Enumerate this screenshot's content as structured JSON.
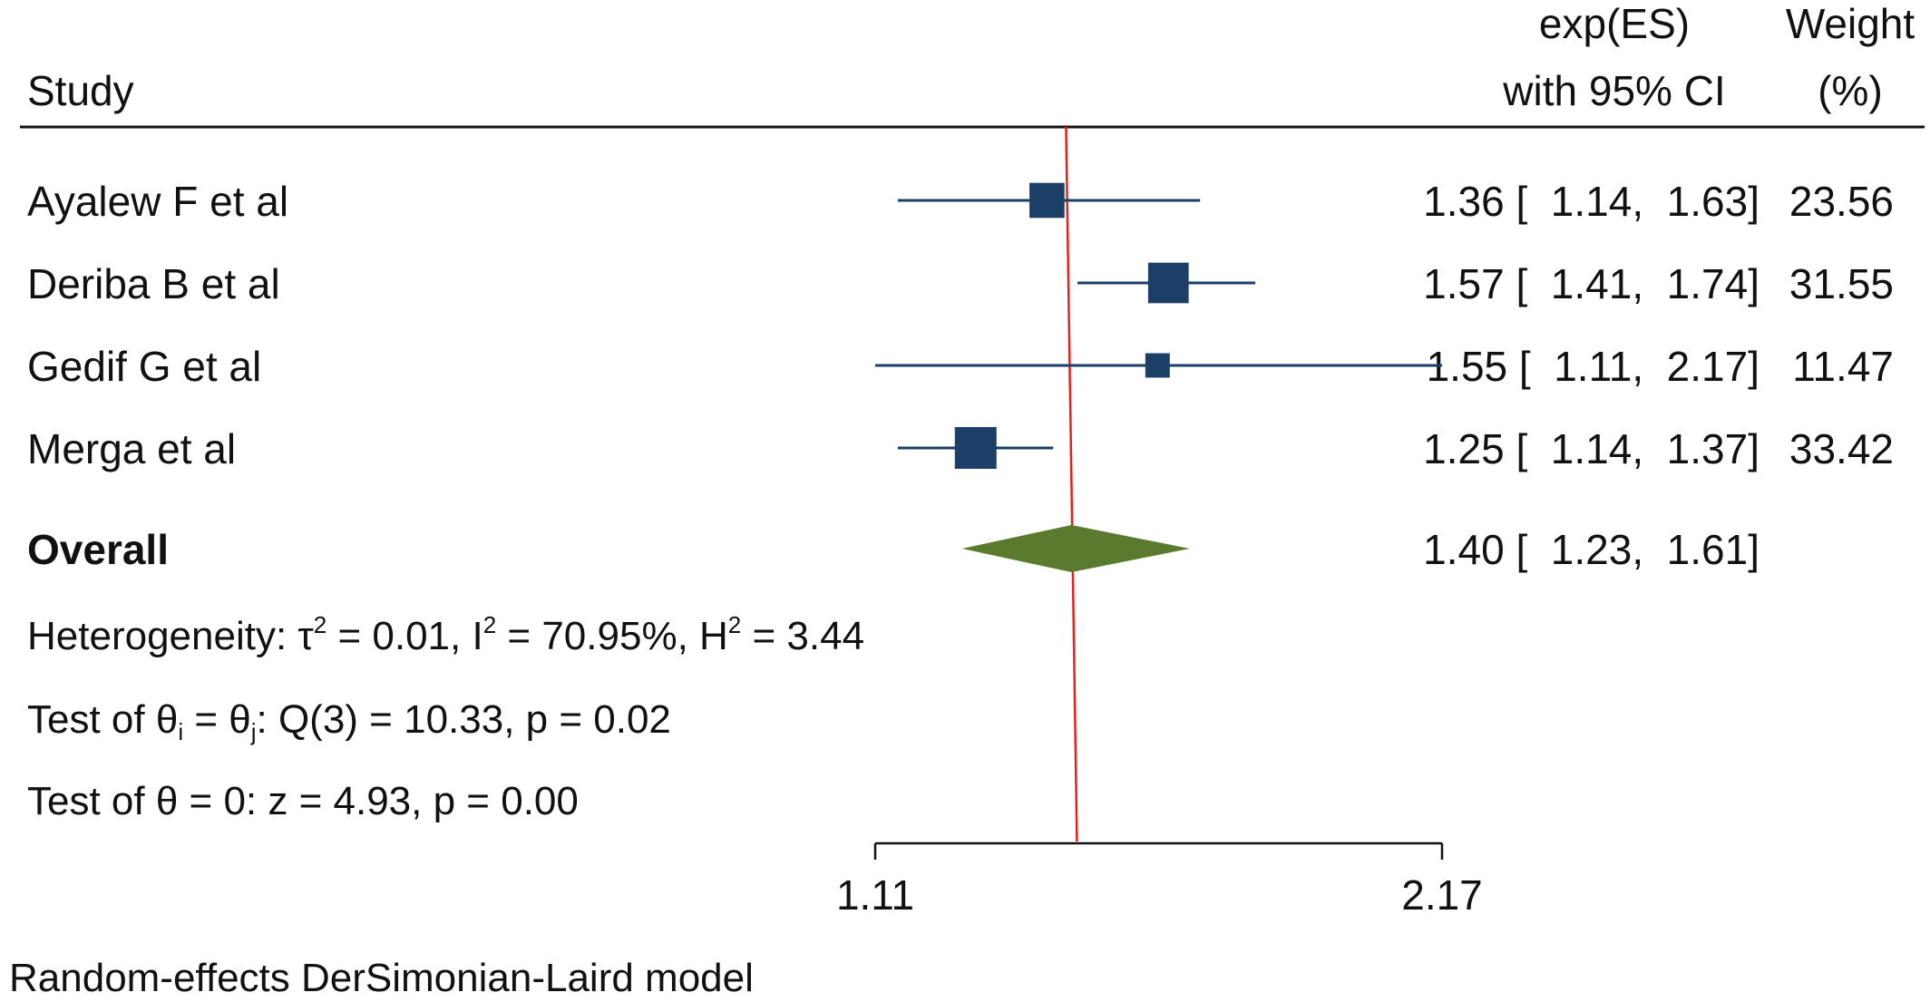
{
  "headers": {
    "study": "Study",
    "es_line1": "exp(ES)",
    "es_line2": "with 95% CI",
    "weight_line1": "Weight",
    "weight_line2": "(%)"
  },
  "chart_data": {
    "type": "forest",
    "log_scale": true,
    "xlim": [
      1.11,
      2.17
    ],
    "xticks": [
      "1.11",
      "2.17"
    ],
    "reference_line": 1.4,
    "colors": {
      "study_marker": "#1b3f66",
      "ci_line": "#1b3f66",
      "overall_diamond": "#5a7a2e",
      "reference_line": "#e8201c",
      "text": "#111111"
    },
    "studies": [
      {
        "name": "Ayalew F et al",
        "es": 1.36,
        "lo": 1.14,
        "hi": 1.63,
        "ci_text": "1.36 [  1.14,  1.63]",
        "weight": 23.56,
        "weight_text": "23.56"
      },
      {
        "name": "Deriba B et al",
        "es": 1.57,
        "lo": 1.41,
        "hi": 1.74,
        "ci_text": "1.57 [  1.41,  1.74]",
        "weight": 31.55,
        "weight_text": "31.55"
      },
      {
        "name": "Gedif G et al",
        "es": 1.55,
        "lo": 1.11,
        "hi": 2.17,
        "ci_text": "1.55 [  1.11,  2.17]",
        "weight": 11.47,
        "weight_text": "11.47"
      },
      {
        "name": "Merga et al",
        "es": 1.25,
        "lo": 1.14,
        "hi": 1.37,
        "ci_text": "1.25 [  1.14,  1.37]",
        "weight": 33.42,
        "weight_text": "33.42"
      }
    ],
    "overall": {
      "name": "Overall",
      "es": 1.4,
      "lo": 1.23,
      "hi": 1.61,
      "ci_text": "1.40 [  1.23,  1.61]"
    }
  },
  "stats": {
    "heterogeneity_prefix": "Heterogeneity: τ",
    "tau_sup": "2",
    "heterogeneity_mid1": " = 0.01, I",
    "i_sup": "2",
    "heterogeneity_mid2": " = 70.95%, H",
    "h_sup": "2",
    "heterogeneity_end": " = 3.44",
    "test1_prefix": "Test of θ",
    "test1_sub_i": "i",
    "test1_mid": " = θ",
    "test1_sub_j": "j",
    "test1_end": ": Q(3) = 10.33, p = 0.02",
    "test2": "Test of θ = 0: z = 4.93, p = 0.00"
  },
  "footnote": "Random-effects DerSimonian-Laird model"
}
